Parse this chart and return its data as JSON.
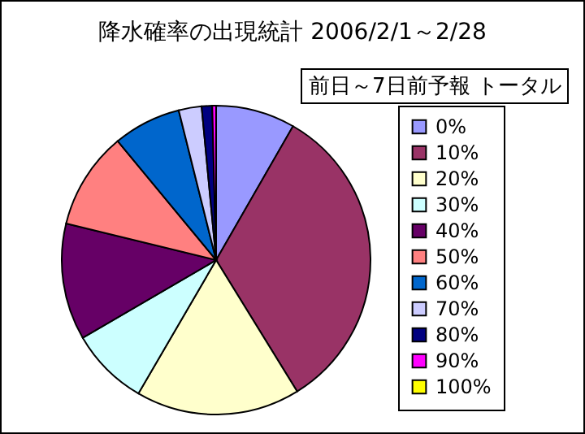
{
  "chart_data": {
    "type": "pie",
    "title": "降水確率の出現統計  2006/2/1～2/28",
    "subtitle": "前日～7日前予報 トータル",
    "categories": [
      "0%",
      "10%",
      "20%",
      "30%",
      "40%",
      "50%",
      "60%",
      "70%",
      "80%",
      "90%",
      "100%"
    ],
    "values": [
      8.3,
      32.9,
      17.2,
      8.2,
      12.2,
      10.2,
      7.1,
      2.4,
      1.1,
      0.4,
      0
    ],
    "colors": [
      "#9999ff",
      "#993366",
      "#ffffcc",
      "#ccffff",
      "#660066",
      "#ff8080",
      "#0066cc",
      "#ccccff",
      "#000080",
      "#ff00ff",
      "#ffff00"
    ],
    "legend": "right"
  }
}
